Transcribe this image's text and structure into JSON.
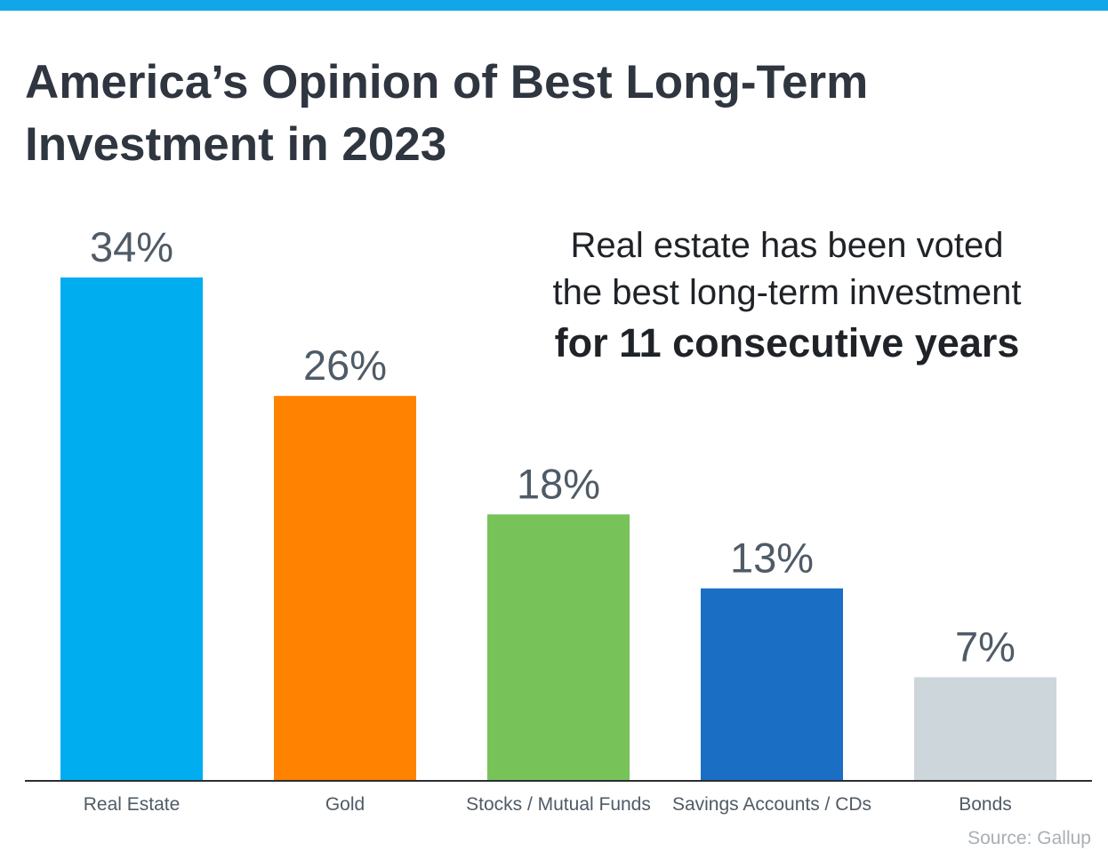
{
  "title_lines": [
    "America’s Opinion of Best Long-Term",
    "Investment in 2023"
  ],
  "callout": {
    "line1": "Real estate has been voted",
    "line2": "the best long-term investment",
    "line3": "for 11 consecutive years"
  },
  "source": "Source: Gallup",
  "colors": {
    "top_bar": "#11a6e8",
    "title": "#2f3640",
    "value_label": "#4f5b66",
    "category_label": "#4f5b66",
    "axis": "#2b2f33"
  },
  "chart_data": {
    "type": "bar",
    "title": "America’s Opinion of Best Long-Term Investment in 2023",
    "categories": [
      "Real Estate",
      "Gold",
      "Stocks / Mutual Funds",
      "Savings Accounts / CDs",
      "Bonds"
    ],
    "values": [
      34,
      26,
      18,
      13,
      7
    ],
    "value_labels": [
      "34%",
      "26%",
      "18%",
      "13%",
      "7%"
    ],
    "bar_colors": [
      "#00aeef",
      "#ff8200",
      "#77c35a",
      "#1a6fc4",
      "#cdd6da"
    ],
    "ylim": [
      0,
      34
    ],
    "xlabel": "",
    "ylabel": "",
    "grid": false,
    "legend": "none"
  }
}
